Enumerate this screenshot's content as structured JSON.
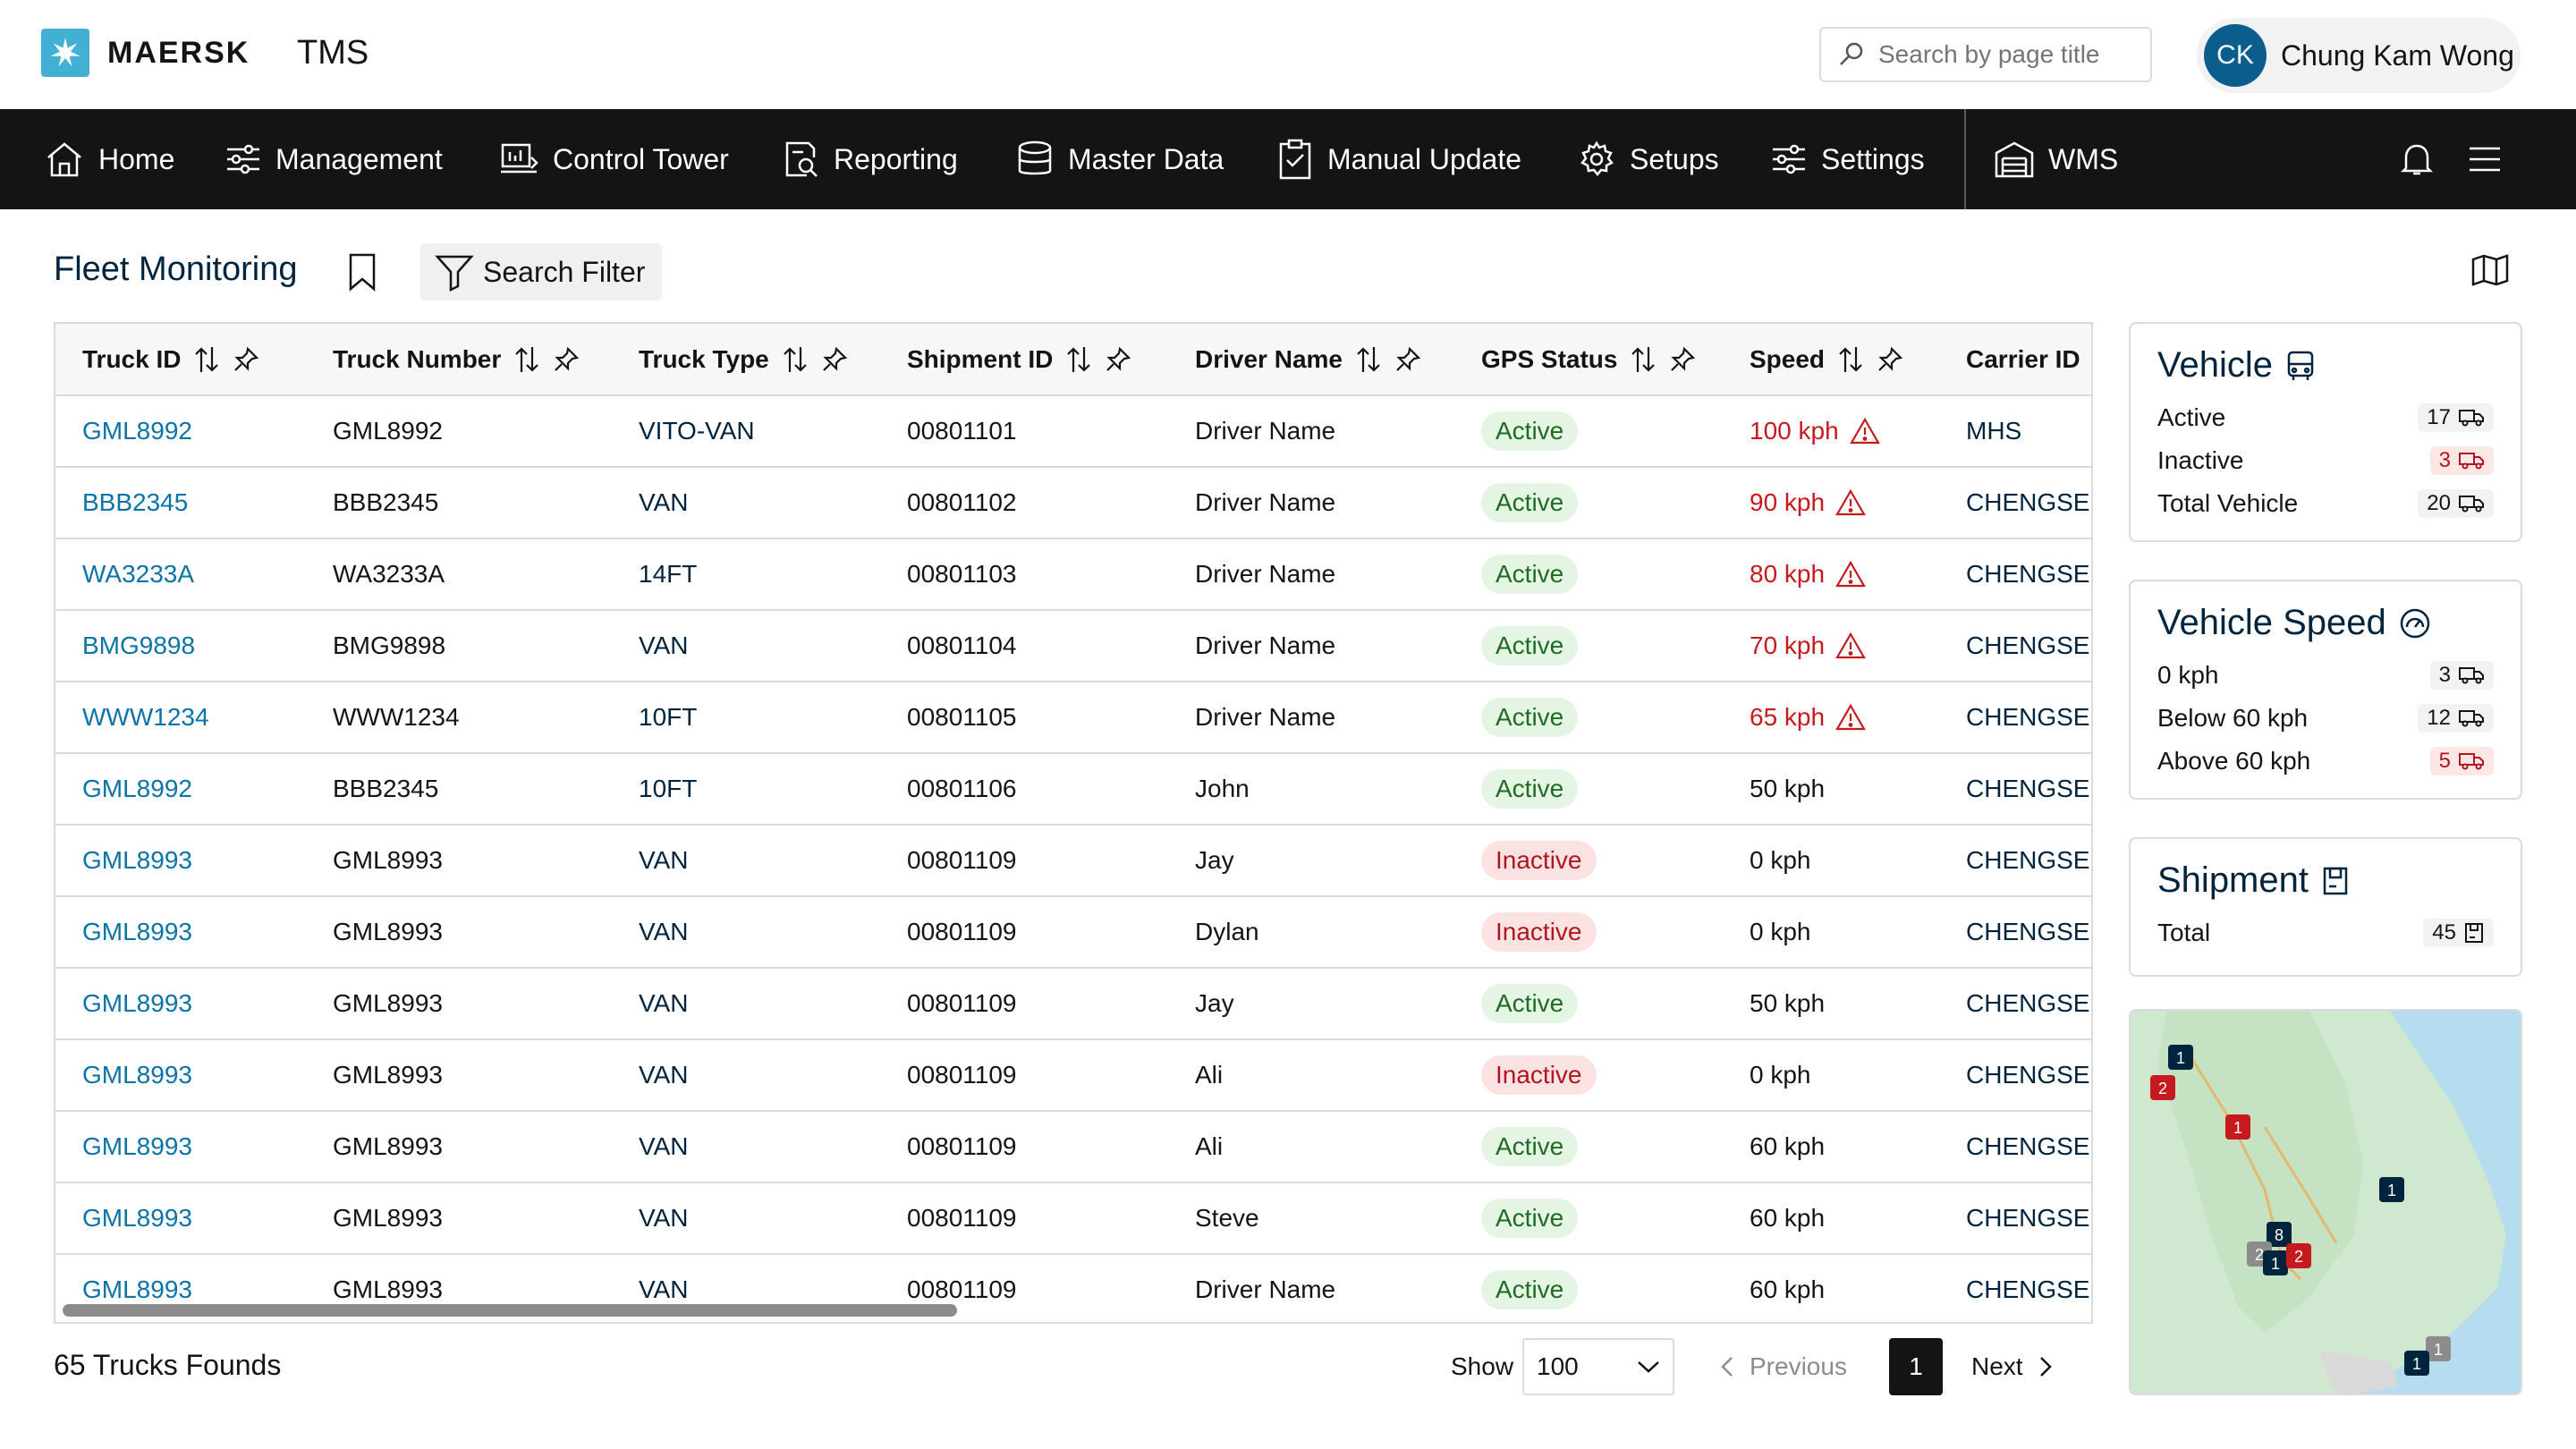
{
  "header": {
    "logo_text": "MAERSK",
    "app_name": "TMS",
    "search_placeholder": "Search by page title",
    "user_initials": "CK",
    "user_name": "Chung Kam Wong"
  },
  "nav": {
    "items": [
      {
        "label": "Home",
        "icon": "home-icon"
      },
      {
        "label": "Management",
        "icon": "sliders-icon"
      },
      {
        "label": "Control Tower",
        "icon": "tower-icon"
      },
      {
        "label": "Reporting",
        "icon": "report-icon"
      },
      {
        "label": "Master Data",
        "icon": "database-icon"
      },
      {
        "label": "Manual Update",
        "icon": "clipboard-icon"
      },
      {
        "label": "Setups",
        "icon": "gear-icon"
      },
      {
        "label": "Settings",
        "icon": "sliders-icon"
      },
      {
        "label": "WMS",
        "icon": "warehouse-icon"
      }
    ]
  },
  "page": {
    "title": "Fleet Monitoring",
    "filter_label": "Search Filter"
  },
  "table": {
    "columns": [
      "Truck ID",
      "Truck Number",
      "Truck Type",
      "Shipment ID",
      "Driver Name",
      "GPS Status",
      "Speed",
      "Carrier ID"
    ],
    "rows": [
      {
        "truck_id": "GML8992",
        "truck_number": "GML8992",
        "truck_type": "VITO-VAN",
        "shipment_id": "00801101",
        "driver": "Driver Name",
        "status": "Active",
        "speed": "100 kph",
        "alert": true,
        "carrier": "MHS"
      },
      {
        "truck_id": "BBB2345",
        "truck_number": "BBB2345",
        "truck_type": "VAN",
        "shipment_id": "00801102",
        "driver": "Driver Name",
        "status": "Active",
        "speed": "90 kph",
        "alert": true,
        "carrier": "CHENGSEN"
      },
      {
        "truck_id": "WA3233A",
        "truck_number": "WA3233A",
        "truck_type": "14FT",
        "shipment_id": "00801103",
        "driver": "Driver Name",
        "status": "Active",
        "speed": "80 kph",
        "alert": true,
        "carrier": "CHENGSEN"
      },
      {
        "truck_id": "BMG9898",
        "truck_number": "BMG9898",
        "truck_type": "VAN",
        "shipment_id": "00801104",
        "driver": "Driver Name",
        "status": "Active",
        "speed": "70 kph",
        "alert": true,
        "carrier": "CHENGSEN"
      },
      {
        "truck_id": "WWW1234",
        "truck_number": "WWW1234",
        "truck_type": "10FT",
        "shipment_id": "00801105",
        "driver": "Driver Name",
        "status": "Active",
        "speed": "65 kph",
        "alert": true,
        "carrier": "CHENGSEN"
      },
      {
        "truck_id": "GML8992",
        "truck_number": "BBB2345",
        "truck_type": "10FT",
        "shipment_id": "00801106",
        "driver": "John",
        "status": "Active",
        "speed": "50 kph",
        "alert": false,
        "carrier": "CHENGSEN"
      },
      {
        "truck_id": "GML8993",
        "truck_number": "GML8993",
        "truck_type": "VAN",
        "shipment_id": "00801109",
        "driver": "Jay",
        "status": "Inactive",
        "speed": "0 kph",
        "alert": false,
        "carrier": "CHENGSEN"
      },
      {
        "truck_id": "GML8993",
        "truck_number": "GML8993",
        "truck_type": "VAN",
        "shipment_id": "00801109",
        "driver": "Dylan",
        "status": "Inactive",
        "speed": "0 kph",
        "alert": false,
        "carrier": "CHENGSEN"
      },
      {
        "truck_id": "GML8993",
        "truck_number": "GML8993",
        "truck_type": "VAN",
        "shipment_id": "00801109",
        "driver": "Jay",
        "status": "Active",
        "speed": "50 kph",
        "alert": false,
        "carrier": "CHENGSEN"
      },
      {
        "truck_id": "GML8993",
        "truck_number": "GML8993",
        "truck_type": "VAN",
        "shipment_id": "00801109",
        "driver": "Ali",
        "status": "Inactive",
        "speed": "0 kph",
        "alert": false,
        "carrier": "CHENGSEN"
      },
      {
        "truck_id": "GML8993",
        "truck_number": "GML8993",
        "truck_type": "VAN",
        "shipment_id": "00801109",
        "driver": "Ali",
        "status": "Active",
        "speed": "60 kph",
        "alert": false,
        "carrier": "CHENGSEN"
      },
      {
        "truck_id": "GML8993",
        "truck_number": "GML8993",
        "truck_type": "VAN",
        "shipment_id": "00801109",
        "driver": "Steve",
        "status": "Active",
        "speed": "60 kph",
        "alert": false,
        "carrier": "CHENGSEN"
      },
      {
        "truck_id": "GML8993",
        "truck_number": "GML8993",
        "truck_type": "VAN",
        "shipment_id": "00801109",
        "driver": "Driver Name",
        "status": "Active",
        "speed": "60 kph",
        "alert": false,
        "carrier": "CHENGSEN"
      }
    ]
  },
  "footer": {
    "found_text": "65 Trucks Founds",
    "show_label": "Show",
    "show_value": "100",
    "prev_label": "Previous",
    "page_number": "1",
    "next_label": "Next"
  },
  "vehicle_card": {
    "title": "Vehicle",
    "rows": [
      {
        "label": "Active",
        "count": "17",
        "tone": "neutral"
      },
      {
        "label": "Inactive",
        "count": "3",
        "tone": "red"
      },
      {
        "label": "Total Vehicle",
        "count": "20",
        "tone": "neutral"
      }
    ]
  },
  "speed_card": {
    "title": "Vehicle Speed",
    "rows": [
      {
        "label": "0 kph",
        "count": "3",
        "tone": "neutral"
      },
      {
        "label": "Below 60 kph",
        "count": "12",
        "tone": "neutral"
      },
      {
        "label": "Above 60 kph",
        "count": "5",
        "tone": "red"
      }
    ]
  },
  "shipment_card": {
    "title": "Shipment",
    "rows": [
      {
        "label": "Total",
        "count": "45",
        "tone": "neutral"
      }
    ]
  },
  "map": {
    "markers": [
      {
        "label": "1",
        "color": "#00243d"
      },
      {
        "label": "2",
        "color": "#c61a1f"
      },
      {
        "label": "1",
        "color": "#c61a1f"
      },
      {
        "label": "1",
        "color": "#00243d"
      },
      {
        "label": "8",
        "color": "#00243d"
      },
      {
        "label": "2",
        "color": "#8c8c8c"
      },
      {
        "label": "1",
        "color": "#00243d"
      },
      {
        "label": "2",
        "color": "#c61a1f"
      },
      {
        "label": "1",
        "color": "#8c8c8c"
      },
      {
        "label": "1",
        "color": "#00243d"
      }
    ]
  },
  "colors": {
    "brand": "#42b0d5",
    "nav_bg": "#141414",
    "link": "#0b73a8",
    "alert": "#c61a1f",
    "active_pill": "#e4f5e3",
    "inactive_pill": "#fbe3e3"
  }
}
